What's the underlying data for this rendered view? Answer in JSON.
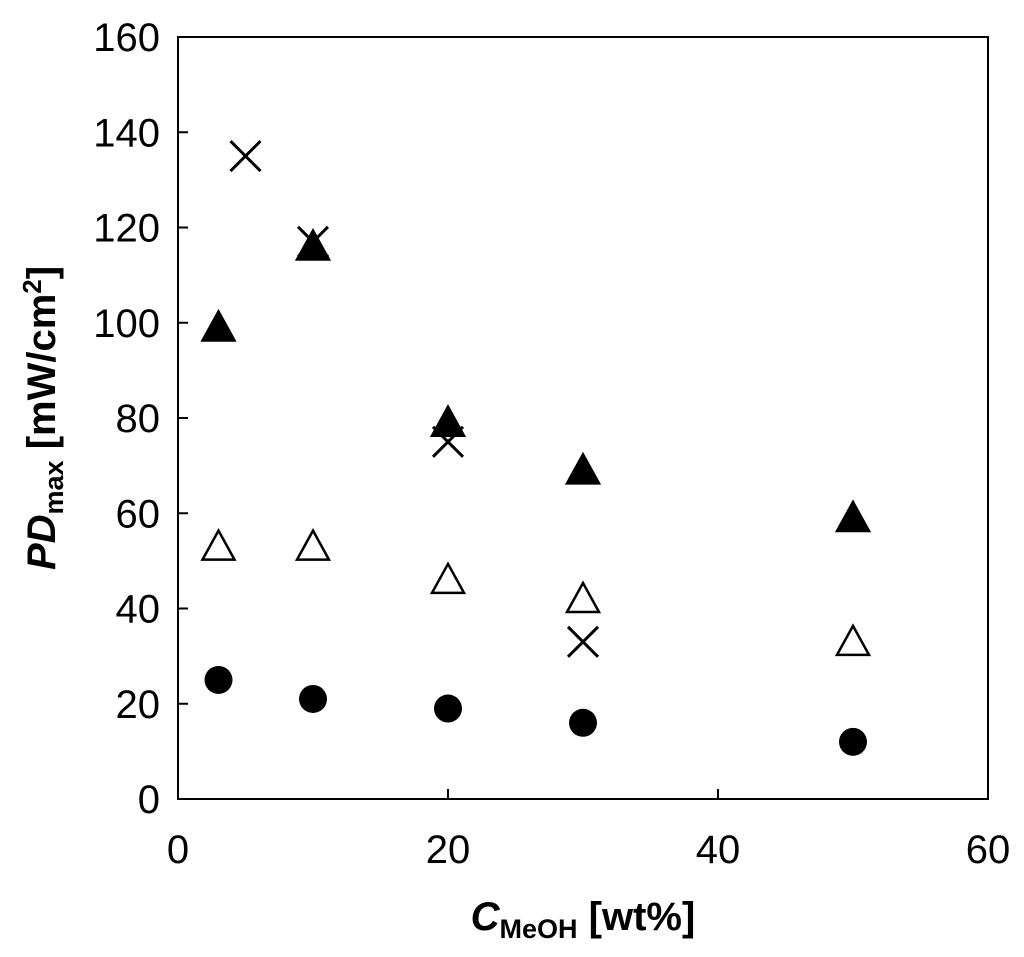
{
  "chart_data": {
    "type": "scatter",
    "xlabel": {
      "main": "C",
      "sub": "MeOH",
      "unit": " [wt%]"
    },
    "ylabel": {
      "main": "PD",
      "sub": "max",
      "unit": " [mW/cm",
      "sup": "2",
      "close": "]"
    },
    "xlim": [
      0,
      60
    ],
    "ylim": [
      0,
      160
    ],
    "xticks": [
      "0",
      "20",
      "40",
      "60"
    ],
    "yticks": [
      "0",
      "20",
      "40",
      "60",
      "80",
      "100",
      "120",
      "140",
      "160"
    ],
    "grid": false,
    "legend": "none",
    "series": [
      {
        "marker": "filled-circle",
        "x": [
          3,
          10,
          20,
          30,
          50
        ],
        "y": [
          25,
          21,
          19,
          16,
          12
        ]
      },
      {
        "marker": "open-triangle",
        "x": [
          3,
          10,
          20,
          30,
          50
        ],
        "y": [
          53,
          53,
          46,
          42,
          33
        ]
      },
      {
        "marker": "filled-triangle",
        "x": [
          3,
          10,
          20,
          30,
          50
        ],
        "y": [
          99,
          116,
          79,
          69,
          59
        ]
      },
      {
        "marker": "cross",
        "x": [
          5,
          10,
          20,
          30
        ],
        "y": [
          135,
          117,
          75,
          33
        ]
      }
    ]
  }
}
